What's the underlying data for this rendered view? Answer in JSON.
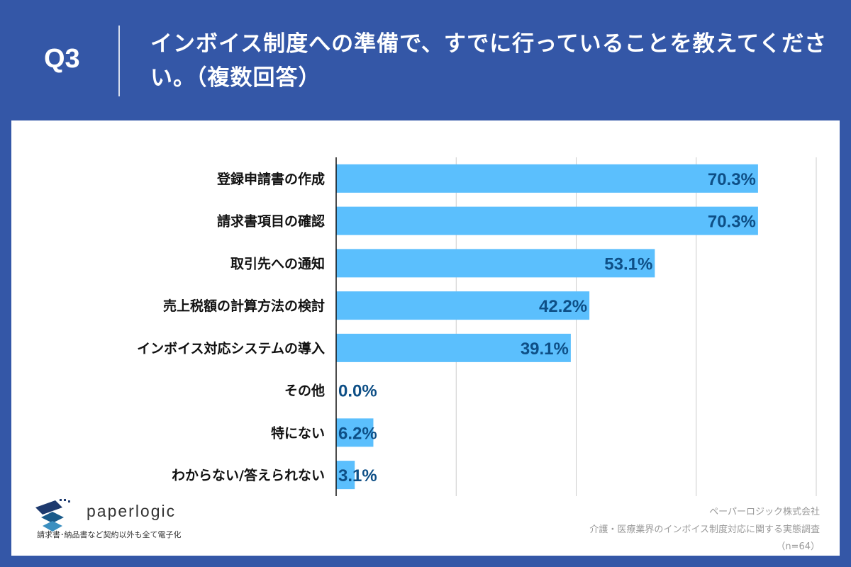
{
  "header": {
    "q_label": "Q3",
    "title": "インボイス制度への準備で、すでに行っていることを教えてください。（複数回答）"
  },
  "chart_data": {
    "type": "bar",
    "orientation": "horizontal",
    "categories": [
      "登録申請書の作成",
      "請求書項目の確認",
      "取引先への通知",
      "売上税額の計算方法の検討",
      "インボイス対応システムの導入",
      "その他",
      "特にない",
      "わからない/答えられない"
    ],
    "values": [
      70.3,
      70.3,
      53.1,
      42.2,
      39.1,
      0.0,
      6.2,
      3.1
    ],
    "labels": [
      "70.3%",
      "70.3%",
      "53.1%",
      "42.2%",
      "39.1%",
      "0.0%",
      "6.2%",
      "3.1%"
    ],
    "xlim": [
      0,
      80
    ],
    "grid": true,
    "bar_color": "#5bbffd",
    "label_color": "#0e4f86"
  },
  "logo": {
    "name": "paperlogic",
    "tagline": "請求書･納品書など契約以外も全て電子化"
  },
  "source": {
    "company": "ペーパーロジック株式会社",
    "survey": "介護・医療業界のインボイス制度対応に関する実態調査",
    "sample": "（n=64）"
  }
}
